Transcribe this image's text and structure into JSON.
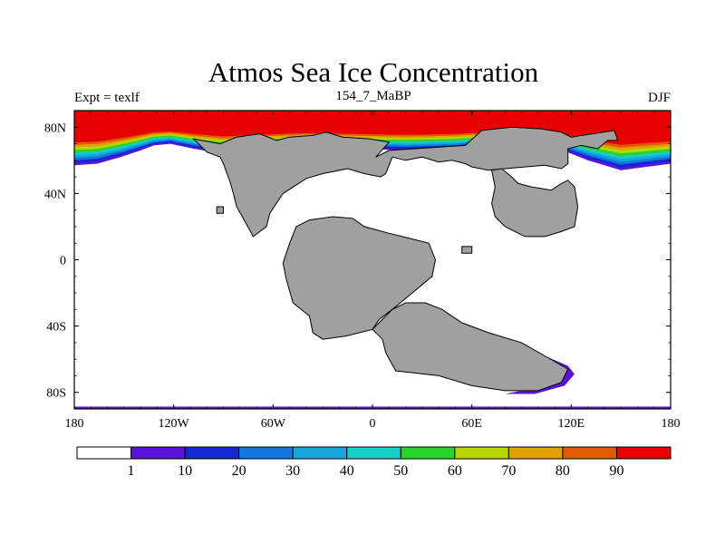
{
  "plot": {
    "title": "Atmos Sea Ice Concentration",
    "left_label": "Expt = texlf",
    "center_label": "154_7_MaBP",
    "right_label": "DJF"
  },
  "colors": {
    "land": "#a0a0a0",
    "ocean": "#ffffff",
    "frame": "#000000"
  },
  "chart_data": {
    "type": "heatmap",
    "variable": "Sea Ice Concentration",
    "units": "%",
    "experiment": "texlf",
    "period": "154_7_MaBP",
    "season": "DJF",
    "projection": "cylindrical equidistant",
    "lon_range": [
      -180,
      180
    ],
    "lat_range": [
      -90,
      90
    ],
    "x_ticks": [
      {
        "value": -180,
        "label": "180"
      },
      {
        "value": -120,
        "label": "120W"
      },
      {
        "value": -60,
        "label": "60W"
      },
      {
        "value": 0,
        "label": "0"
      },
      {
        "value": 60,
        "label": "60E"
      },
      {
        "value": 120,
        "label": "120E"
      },
      {
        "value": 180,
        "label": "180"
      }
    ],
    "y_ticks": [
      {
        "value": 80,
        "label": "80N"
      },
      {
        "value": 40,
        "label": "40N"
      },
      {
        "value": 0,
        "label": "0"
      },
      {
        "value": -40,
        "label": "40S"
      },
      {
        "value": -80,
        "label": "80S"
      }
    ],
    "colorbar": {
      "levels": [
        1,
        10,
        20,
        30,
        40,
        50,
        60,
        70,
        80,
        90
      ],
      "labels": [
        "1",
        "10",
        "20",
        "30",
        "40",
        "50",
        "60",
        "70",
        "80",
        "90"
      ],
      "colors": [
        "#ffffff",
        "#5a14d8",
        "#1428d0",
        "#1476e0",
        "#14a6dc",
        "#14d0c8",
        "#28d428",
        "#b8d800",
        "#e0a000",
        "#e05a00",
        "#e60000"
      ]
    },
    "continents": [
      {
        "name": "laurasia-north",
        "outline": [
          [
            -108,
            73
          ],
          [
            -92,
            70
          ],
          [
            -82,
            74
          ],
          [
            -68,
            76
          ],
          [
            -58,
            72
          ],
          [
            -50,
            74
          ],
          [
            -36,
            75
          ],
          [
            -28,
            77
          ],
          [
            -18,
            74
          ],
          [
            -2,
            73
          ],
          [
            10,
            71
          ],
          [
            2,
            62
          ],
          [
            10,
            66
          ],
          [
            26,
            67
          ],
          [
            40,
            68
          ],
          [
            56,
            69
          ],
          [
            66,
            78
          ],
          [
            84,
            80
          ],
          [
            102,
            79
          ],
          [
            114,
            77
          ],
          [
            120,
            74
          ],
          [
            146,
            78
          ],
          [
            148,
            72
          ],
          [
            142,
            72
          ],
          [
            136,
            67
          ],
          [
            126,
            69
          ],
          [
            118,
            67
          ],
          [
            118,
            58
          ],
          [
            114,
            55
          ],
          [
            104,
            57
          ],
          [
            80,
            55
          ],
          [
            70,
            54
          ],
          [
            60,
            56
          ],
          [
            56,
            58
          ],
          [
            48,
            60
          ],
          [
            40,
            59
          ],
          [
            30,
            62
          ],
          [
            20,
            60
          ],
          [
            12,
            62
          ],
          [
            8,
            52
          ],
          [
            5,
            50
          ],
          [
            -5,
            52
          ],
          [
            -15,
            55
          ],
          [
            -30,
            52
          ],
          [
            -40,
            49
          ],
          [
            -54,
            40
          ],
          [
            -62,
            28
          ],
          [
            -64,
            20
          ],
          [
            -72,
            14
          ],
          [
            -78,
            25
          ],
          [
            -82,
            32
          ],
          [
            -84,
            40
          ],
          [
            -86,
            47
          ],
          [
            -90,
            58
          ],
          [
            -92,
            62
          ],
          [
            -100,
            65
          ]
        ]
      },
      {
        "name": "laurasia-east",
        "outline": [
          [
            72,
            54
          ],
          [
            78,
            55
          ],
          [
            84,
            50
          ],
          [
            88,
            46
          ],
          [
            96,
            44
          ],
          [
            108,
            42
          ],
          [
            114,
            46
          ],
          [
            118,
            48
          ],
          [
            122,
            44
          ],
          [
            124,
            32
          ],
          [
            122,
            20
          ],
          [
            114,
            17
          ],
          [
            104,
            14
          ],
          [
            92,
            14
          ],
          [
            80,
            20
          ],
          [
            74,
            26
          ],
          [
            72,
            34
          ],
          [
            74,
            44
          ]
        ]
      },
      {
        "name": "gondwana-west",
        "outline": [
          [
            -46,
            20
          ],
          [
            -38,
            24
          ],
          [
            -24,
            26
          ],
          [
            -12,
            25
          ],
          [
            -5,
            20
          ],
          [
            10,
            16
          ],
          [
            18,
            14
          ],
          [
            34,
            10
          ],
          [
            38,
            0
          ],
          [
            36,
            -10
          ],
          [
            24,
            -20
          ],
          [
            12,
            -30
          ],
          [
            4,
            -36
          ],
          [
            0,
            -42
          ],
          [
            -16,
            -46
          ],
          [
            -30,
            -48
          ],
          [
            -36,
            -44
          ],
          [
            -38,
            -34
          ],
          [
            -48,
            -26
          ],
          [
            -52,
            -12
          ],
          [
            -54,
            -2
          ],
          [
            -50,
            10
          ]
        ]
      },
      {
        "name": "gondwana-east",
        "outline": [
          [
            12,
            -30
          ],
          [
            20,
            -26
          ],
          [
            32,
            -26
          ],
          [
            42,
            -30
          ],
          [
            54,
            -38
          ],
          [
            70,
            -44
          ],
          [
            90,
            -50
          ],
          [
            104,
            -58
          ],
          [
            118,
            -66
          ],
          [
            114,
            -74
          ],
          [
            100,
            -79
          ],
          [
            80,
            -79
          ],
          [
            60,
            -76
          ],
          [
            40,
            -70
          ],
          [
            14,
            -67
          ],
          [
            8,
            -56
          ],
          [
            6,
            -48
          ],
          [
            0,
            -42
          ]
        ]
      },
      {
        "name": "small-island-1",
        "outline": [
          [
            -94,
            32
          ],
          [
            -90,
            32
          ],
          [
            -90,
            28
          ],
          [
            -94,
            28
          ]
        ]
      },
      {
        "name": "small-island-2",
        "outline": [
          [
            54,
            8
          ],
          [
            60,
            8
          ],
          [
            60,
            4
          ],
          [
            54,
            4
          ]
        ]
      }
    ]
  },
  "colorbar_labels": [
    "1",
    "10",
    "20",
    "30",
    "40",
    "50",
    "60",
    "70",
    "80",
    "90"
  ]
}
